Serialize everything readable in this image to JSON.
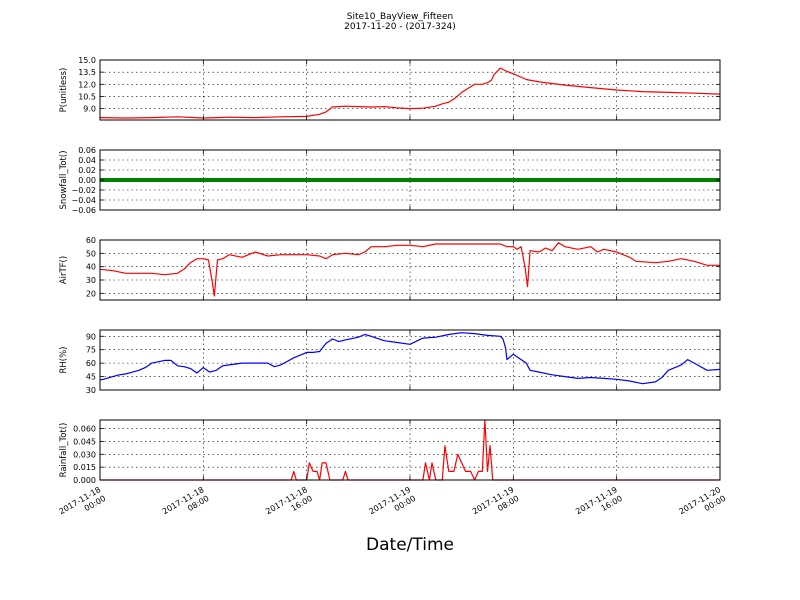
{
  "chart_data": {
    "title": "Site10_BayView_Fifteen",
    "subtitle": "2017-11-20 - (2017-324)",
    "xlabel": "Date/Time",
    "x_range": [
      "2017-11-18 00:00",
      "2017-11-20 00:00"
    ],
    "x_ticks": [
      {
        "t": 0,
        "line1": "2017-11-18",
        "line2": "00:00"
      },
      {
        "t": 8,
        "line1": "2017-11-18",
        "line2": "08:00"
      },
      {
        "t": 16,
        "line1": "2017-11-18",
        "line2": "16:00"
      },
      {
        "t": 24,
        "line1": "2017-11-19",
        "line2": "00:00"
      },
      {
        "t": 32,
        "line1": "2017-11-19",
        "line2": "08:00"
      },
      {
        "t": 40,
        "line1": "2017-11-19",
        "line2": "16:00"
      },
      {
        "t": 48,
        "line1": "2017-11-20",
        "line2": "00:00"
      }
    ],
    "grid": true,
    "panels": [
      {
        "type": "line",
        "ylabel": "P(unitless)",
        "ylim": [
          7.6,
          15.0
        ],
        "yticks": [
          9.0,
          10.5,
          12.0,
          13.5,
          15.0
        ],
        "ytick_labels": [
          "9.0",
          "10.5",
          "12.0",
          "13.5",
          "15.0"
        ],
        "color": "#ff0000",
        "series": [
          {
            "values": [
              [
                0,
                7.9
              ],
              [
                2,
                7.85
              ],
              [
                4,
                7.9
              ],
              [
                6,
                8.0
              ],
              [
                8,
                7.85
              ],
              [
                9,
                7.9
              ],
              [
                10,
                7.95
              ],
              [
                12,
                7.9
              ],
              [
                14,
                8.0
              ],
              [
                16,
                8.05
              ],
              [
                17,
                8.3
              ],
              [
                17.5,
                8.6
              ],
              [
                18,
                9.2
              ],
              [
                19,
                9.3
              ],
              [
                21,
                9.2
              ],
              [
                22,
                9.25
              ],
              [
                23,
                9.1
              ],
              [
                24,
                9.0
              ],
              [
                25,
                9.05
              ],
              [
                26,
                9.3
              ],
              [
                26.5,
                9.6
              ],
              [
                27,
                9.8
              ],
              [
                27.5,
                10.3
              ],
              [
                28,
                11.0
              ],
              [
                28.5,
                11.5
              ],
              [
                29,
                12.0
              ],
              [
                29.6,
                12.0
              ],
              [
                30,
                12.2
              ],
              [
                30.3,
                12.5
              ],
              [
                30.5,
                13.2
              ],
              [
                31,
                14.0
              ],
              [
                31.5,
                13.6
              ],
              [
                32,
                13.3
              ],
              [
                33,
                12.6
              ],
              [
                34,
                12.3
              ],
              [
                36,
                11.9
              ],
              [
                38,
                11.6
              ],
              [
                40,
                11.3
              ],
              [
                42,
                11.1
              ],
              [
                44,
                11.0
              ],
              [
                46,
                10.9
              ],
              [
                48,
                10.8
              ]
            ]
          }
        ]
      },
      {
        "type": "line",
        "ylabel": "Snowfall_Tot()",
        "ylim": [
          -0.06,
          0.06
        ],
        "yticks": [
          -0.06,
          -0.04,
          -0.02,
          0.0,
          0.02,
          0.04,
          0.06
        ],
        "ytick_labels": [
          "−0.06",
          "−0.04",
          "−0.02",
          "0.00",
          "0.02",
          "0.04",
          "0.06"
        ],
        "color": "#008000",
        "thick": true,
        "series": [
          {
            "values": [
              [
                0,
                0
              ],
              [
                48,
                0
              ]
            ]
          }
        ]
      },
      {
        "type": "line",
        "ylabel": "AirTF()",
        "ylim": [
          15,
          60
        ],
        "yticks": [
          20,
          30,
          40,
          50,
          60
        ],
        "ytick_labels": [
          "20",
          "30",
          "40",
          "50",
          "60"
        ],
        "color": "#ff0000",
        "series": [
          {
            "values": [
              [
                0,
                38
              ],
              [
                1,
                37
              ],
              [
                2,
                35
              ],
              [
                4,
                35
              ],
              [
                5,
                34
              ],
              [
                6,
                35
              ],
              [
                6.5,
                38
              ],
              [
                7,
                43
              ],
              [
                7.5,
                46
              ],
              [
                8,
                46
              ],
              [
                8.4,
                45
              ],
              [
                8.7,
                28
              ],
              [
                8.85,
                18
              ],
              [
                9.1,
                45
              ],
              [
                9.5,
                46
              ],
              [
                10,
                49
              ],
              [
                11,
                47
              ],
              [
                12,
                51
              ],
              [
                13,
                48
              ],
              [
                14,
                49
              ],
              [
                16,
                49
              ],
              [
                17,
                48
              ],
              [
                17.5,
                46
              ],
              [
                18,
                49
              ],
              [
                19,
                50
              ],
              [
                20,
                49
              ],
              [
                20.5,
                51
              ],
              [
                21,
                55
              ],
              [
                22,
                55
              ],
              [
                23,
                56
              ],
              [
                24,
                56
              ],
              [
                25,
                55
              ],
              [
                26,
                57
              ],
              [
                28,
                57
              ],
              [
                30,
                57
              ],
              [
                31,
                57
              ],
              [
                31.5,
                55
              ],
              [
                32,
                55
              ],
              [
                32.3,
                53
              ],
              [
                32.6,
                55
              ],
              [
                32.9,
                40
              ],
              [
                33.1,
                25
              ],
              [
                33.3,
                52
              ],
              [
                34,
                51
              ],
              [
                34.5,
                54
              ],
              [
                35,
                52
              ],
              [
                35.5,
                58
              ],
              [
                36,
                55
              ],
              [
                37,
                53
              ],
              [
                38,
                55
              ],
              [
                38.5,
                51
              ],
              [
                39,
                53
              ],
              [
                40,
                51
              ],
              [
                41,
                47
              ],
              [
                41.5,
                44
              ],
              [
                43,
                43
              ],
              [
                44,
                44
              ],
              [
                45,
                46
              ],
              [
                46,
                44
              ],
              [
                47,
                41
              ],
              [
                48,
                41
              ]
            ]
          }
        ]
      },
      {
        "type": "line",
        "ylabel": "RH(%)",
        "ylim": [
          30,
          97
        ],
        "yticks": [
          30,
          45,
          60,
          75,
          90
        ],
        "ytick_labels": [
          "30",
          "45",
          "60",
          "75",
          "90"
        ],
        "color": "#0000ff",
        "series": [
          {
            "values": [
              [
                0,
                41
              ],
              [
                0.5,
                43
              ],
              [
                1,
                45
              ],
              [
                1.5,
                47
              ],
              [
                2,
                48
              ],
              [
                3,
                52
              ],
              [
                3.5,
                55
              ],
              [
                4,
                60
              ],
              [
                5,
                63
              ],
              [
                5.5,
                63
              ],
              [
                6,
                57
              ],
              [
                6.5,
                56
              ],
              [
                7,
                54
              ],
              [
                7.5,
                49
              ],
              [
                8,
                55
              ],
              [
                8.5,
                50
              ],
              [
                9,
                52
              ],
              [
                9.5,
                57
              ],
              [
                10,
                58
              ],
              [
                11,
                60
              ],
              [
                12,
                60
              ],
              [
                13,
                60
              ],
              [
                13.5,
                56
              ],
              [
                14,
                58
              ],
              [
                15,
                66
              ],
              [
                16,
                72
              ],
              [
                16.5,
                72
              ],
              [
                17,
                73
              ],
              [
                17.5,
                82
              ],
              [
                18,
                87
              ],
              [
                18.5,
                84
              ],
              [
                19,
                86
              ],
              [
                20,
                89
              ],
              [
                20.5,
                92
              ],
              [
                21,
                90
              ],
              [
                22,
                85
              ],
              [
                23,
                83
              ],
              [
                24,
                81
              ],
              [
                25,
                88
              ],
              [
                26,
                89
              ],
              [
                27,
                92
              ],
              [
                28,
                94
              ],
              [
                29,
                93
              ],
              [
                30,
                91
              ],
              [
                31,
                90
              ],
              [
                31.2,
                87
              ],
              [
                31.4,
                77
              ],
              [
                31.5,
                64
              ],
              [
                32,
                70
              ],
              [
                33,
                60
              ],
              [
                33.3,
                52
              ],
              [
                34,
                50
              ],
              [
                35,
                47
              ],
              [
                36,
                45
              ],
              [
                37,
                43
              ],
              [
                38,
                44
              ],
              [
                39,
                43
              ],
              [
                40,
                42
              ],
              [
                41,
                40
              ],
              [
                42,
                37
              ],
              [
                43,
                39
              ],
              [
                43.5,
                44
              ],
              [
                44,
                52
              ],
              [
                45,
                58
              ],
              [
                45.5,
                64
              ],
              [
                46,
                60
              ],
              [
                47,
                52
              ],
              [
                48,
                53
              ]
            ]
          }
        ]
      },
      {
        "type": "line",
        "ylabel": "Rainfall_Tot()",
        "ylim": [
          0,
          0.07
        ],
        "yticks": [
          0.0,
          0.015,
          0.03,
          0.045,
          0.06
        ],
        "ytick_labels": [
          "0.000",
          "0.015",
          "0.030",
          "0.045",
          "0.060"
        ],
        "color": "#ff0000",
        "series": [
          {
            "values": [
              [
                0,
                0
              ],
              [
                14.8,
                0
              ],
              [
                15,
                0.01
              ],
              [
                15.2,
                0
              ],
              [
                16,
                0
              ],
              [
                16.2,
                0.02
              ],
              [
                16.5,
                0.01
              ],
              [
                16.8,
                0.01
              ],
              [
                17,
                0
              ],
              [
                17.2,
                0.02
              ],
              [
                17.5,
                0.02
              ],
              [
                17.8,
                0
              ],
              [
                18.8,
                0
              ],
              [
                19,
                0.01
              ],
              [
                19.2,
                0
              ],
              [
                25,
                0
              ],
              [
                25.2,
                0.02
              ],
              [
                25.5,
                0
              ],
              [
                25.7,
                0.02
              ],
              [
                26,
                0
              ],
              [
                26.5,
                0
              ],
              [
                26.7,
                0.04
              ],
              [
                27,
                0.01
              ],
              [
                27.4,
                0.01
              ],
              [
                27.7,
                0.03
              ],
              [
                28,
                0.02
              ],
              [
                28.3,
                0.01
              ],
              [
                28.7,
                0.01
              ],
              [
                29,
                0
              ],
              [
                29.3,
                0.01
              ],
              [
                29.6,
                0.01
              ],
              [
                29.8,
                0.07
              ],
              [
                30,
                0.01
              ],
              [
                30.2,
                0.04
              ],
              [
                30.4,
                0
              ],
              [
                48,
                0
              ]
            ]
          }
        ]
      }
    ]
  }
}
